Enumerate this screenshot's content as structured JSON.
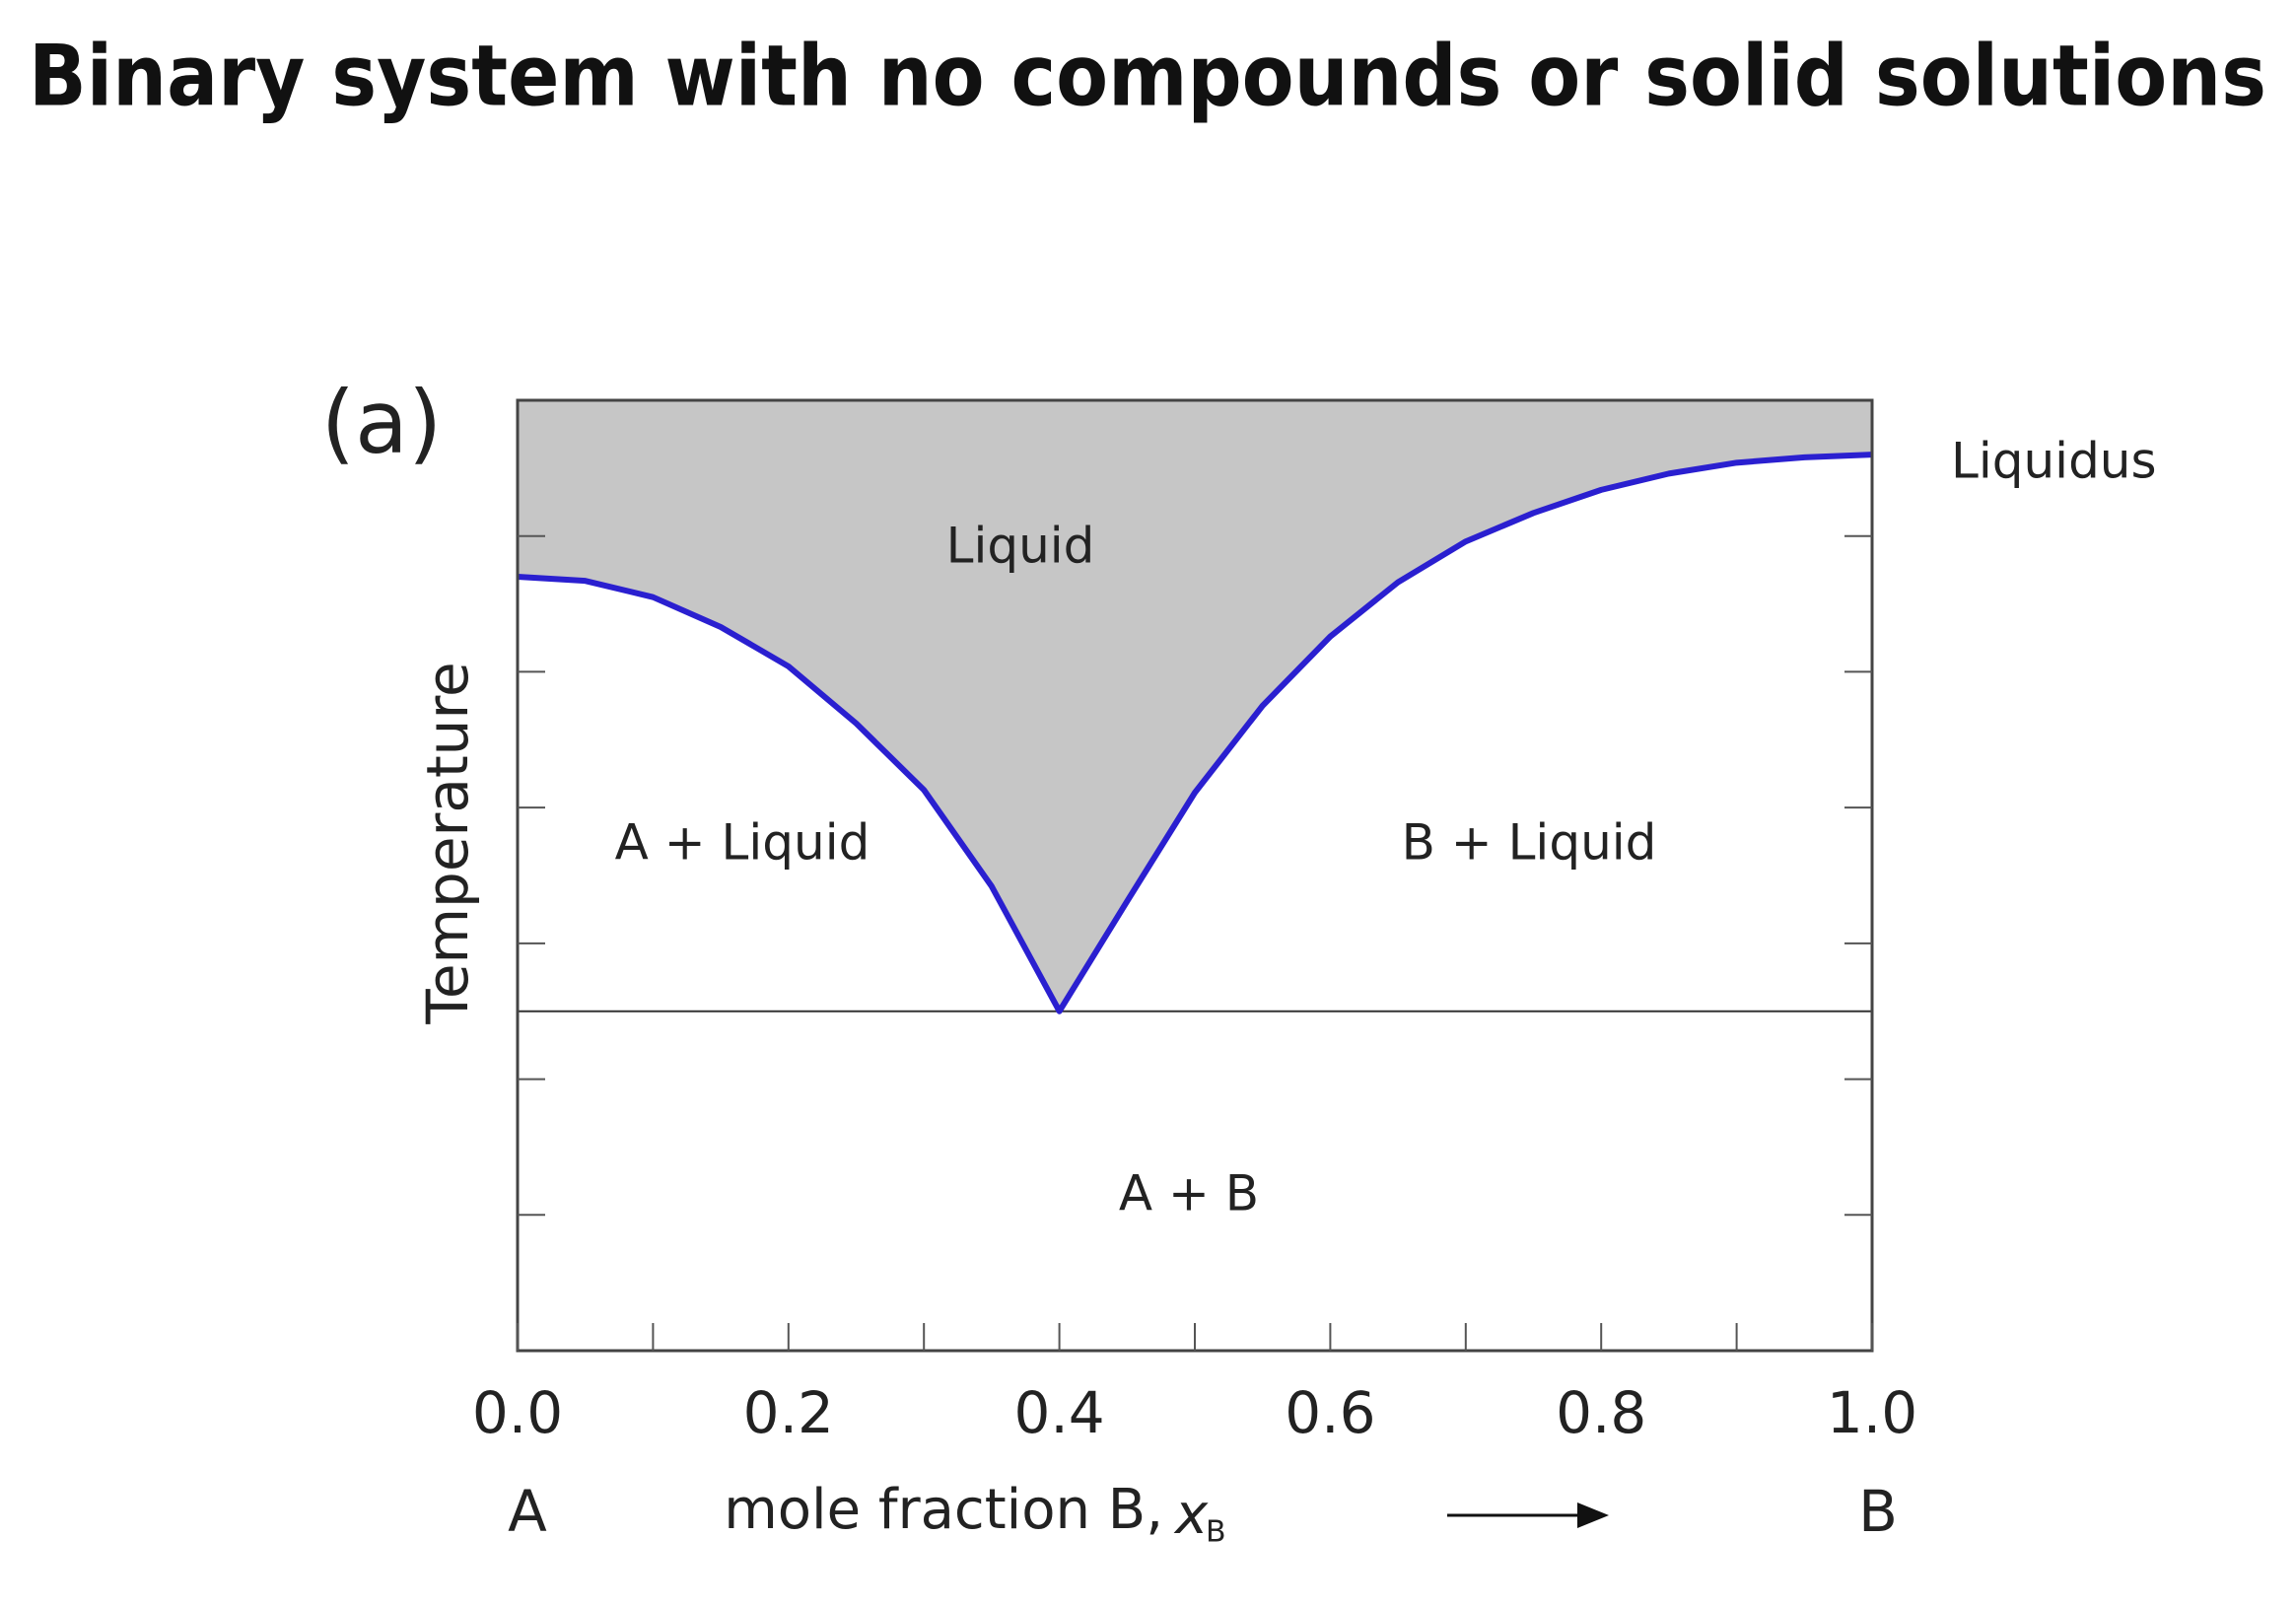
{
  "chart_data": {
    "type": "line",
    "title": "Binary system with no compounds or solid solutions",
    "panel_label": "(a)",
    "xlabel": "mole fraction B,",
    "xlabel_symbol": "x",
    "xlabel_subscript": "B",
    "ylabel": "Temperature",
    "x_end_labels": [
      "A",
      "B"
    ],
    "x": [
      0.0,
      0.05,
      0.1,
      0.15,
      0.2,
      0.25,
      0.3,
      0.35,
      0.4,
      0.45,
      0.5,
      0.55,
      0.6,
      0.65,
      0.7,
      0.75,
      0.8,
      0.85,
      0.9,
      0.95,
      1.0
    ],
    "series": [
      {
        "name": "Liquidus",
        "color": "#2a1fd0",
        "values": [
          5.7,
          5.67,
          5.55,
          5.33,
          5.04,
          4.62,
          4.13,
          3.42,
          2.5,
          3.31,
          4.11,
          4.75,
          5.26,
          5.66,
          5.96,
          6.17,
          6.34,
          6.46,
          6.54,
          6.58,
          6.6
        ]
      }
    ],
    "region_color": "#c6c6c6",
    "hline": 2.5,
    "annotations": [
      "Liquid",
      "A + Liquid",
      "B + Liquid",
      "A + B"
    ],
    "xlim": [
      0,
      1
    ],
    "ylim": [
      0,
      7
    ],
    "xticks": [
      {
        "value": 0,
        "label": "0.0"
      },
      {
        "value": 0.2,
        "label": "0.2"
      },
      {
        "value": 0.4,
        "label": "0.4"
      },
      {
        "value": 0.6,
        "label": "0.6"
      },
      {
        "value": 0.8,
        "label": "0.8"
      },
      {
        "value": 1,
        "label": "1.0"
      }
    ],
    "xminorticks": [
      0.1,
      0.3,
      0.5,
      0.7,
      0.9
    ],
    "yticks": [
      1,
      2,
      3,
      4,
      5,
      6
    ]
  }
}
